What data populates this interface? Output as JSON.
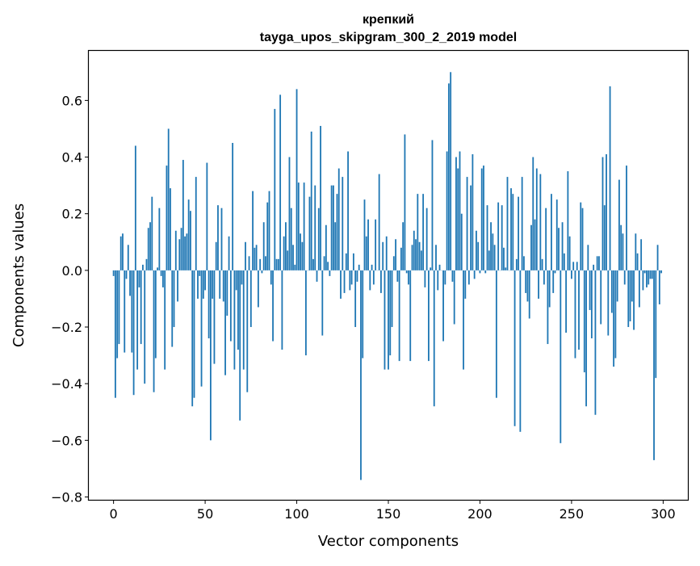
{
  "colors": {
    "bar": "#1f77b4",
    "axis": "#000000",
    "background": "#ffffff"
  },
  "chart_data": {
    "type": "bar",
    "title": "крепкий",
    "subtitle": "tayga_upos_skipgram_300_2_2019 model",
    "xlabel": "Vector components",
    "ylabel": "Components values",
    "xlim": [
      -13.5,
      313.5
    ],
    "ylim": [
      -0.81,
      0.775
    ],
    "xticks": [
      0,
      50,
      100,
      150,
      200,
      250,
      300
    ],
    "xtick_labels": [
      "0",
      "50",
      "100",
      "150",
      "200",
      "250",
      "300"
    ],
    "yticks": [
      -0.8,
      -0.6,
      -0.4,
      -0.2,
      0.0,
      0.2,
      0.4,
      0.6
    ],
    "ytick_labels": [
      "−0.8",
      "−0.6",
      "−0.4",
      "−0.2",
      "0.0",
      "0.2",
      "0.4",
      "0.6"
    ],
    "grid": false,
    "x": "0..299 (component index)",
    "values": [
      -0.02,
      -0.45,
      -0.31,
      -0.26,
      0.12,
      0.13,
      -0.29,
      -0.03,
      0.09,
      -0.09,
      -0.29,
      -0.44,
      0.44,
      -0.35,
      -0.06,
      -0.26,
      0.02,
      -0.4,
      0.04,
      0.15,
      0.17,
      0.26,
      -0.43,
      -0.31,
      0.01,
      0.22,
      -0.02,
      -0.06,
      -0.35,
      0.37,
      0.5,
      0.29,
      -0.27,
      -0.2,
      0.14,
      -0.11,
      0.11,
      0.15,
      0.39,
      0.12,
      0.13,
      0.25,
      0.21,
      -0.48,
      -0.45,
      0.33,
      -0.1,
      -0.02,
      -0.41,
      -0.1,
      -0.07,
      0.38,
      -0.24,
      -0.6,
      -0.1,
      -0.33,
      0.1,
      0.23,
      -0.1,
      0.22,
      -0.11,
      -0.37,
      -0.16,
      0.12,
      -0.25,
      0.45,
      -0.35,
      -0.07,
      -0.28,
      -0.53,
      -0.05,
      -0.35,
      0.1,
      -0.43,
      0.05,
      -0.2,
      0.28,
      0.08,
      0.09,
      -0.13,
      0.04,
      -0.01,
      0.17,
      0.05,
      0.24,
      0.28,
      -0.05,
      -0.25,
      0.57,
      0.04,
      0.04,
      0.62,
      -0.28,
      0.12,
      0.17,
      0.07,
      0.4,
      0.22,
      0.09,
      0.02,
      0.64,
      0.31,
      0.13,
      0.1,
      0.31,
      -0.3,
      0.0,
      0.26,
      0.49,
      0.04,
      0.3,
      -0.04,
      0.22,
      0.51,
      -0.23,
      0.05,
      0.16,
      0.03,
      -0.02,
      0.3,
      0.3,
      0.17,
      0.27,
      0.36,
      -0.1,
      0.33,
      -0.08,
      0.06,
      0.42,
      -0.07,
      -0.05,
      0.06,
      -0.2,
      -0.04,
      0.02,
      -0.74,
      -0.31,
      0.25,
      0.12,
      0.18,
      -0.07,
      0.02,
      -0.05,
      0.18,
      0.0,
      0.34,
      -0.08,
      0.1,
      -0.35,
      0.12,
      -0.35,
      -0.3,
      -0.2,
      0.05,
      0.11,
      -0.04,
      -0.32,
      0.08,
      0.17,
      0.48,
      -0.01,
      -0.05,
      -0.32,
      0.09,
      0.14,
      0.11,
      0.27,
      0.1,
      0.07,
      0.27,
      -0.06,
      0.22,
      -0.32,
      0.01,
      0.46,
      -0.48,
      0.09,
      -0.07,
      0.02,
      0.0,
      -0.25,
      -0.05,
      0.42,
      0.66,
      0.7,
      -0.04,
      -0.19,
      0.4,
      0.36,
      0.42,
      0.2,
      -0.35,
      -0.1,
      0.33,
      -0.05,
      0.3,
      0.41,
      -0.03,
      0.14,
      0.1,
      -0.01,
      0.36,
      0.37,
      -0.01,
      0.23,
      0.07,
      0.17,
      0.13,
      0.09,
      -0.45,
      0.24,
      0.0,
      0.23,
      0.08,
      0.01,
      0.33,
      0.0,
      0.29,
      0.27,
      -0.55,
      0.04,
      0.26,
      -0.57,
      0.33,
      0.05,
      -0.08,
      -0.11,
      -0.17,
      0.16,
      0.4,
      0.18,
      0.36,
      -0.1,
      0.34,
      0.04,
      -0.05,
      0.22,
      -0.26,
      -0.13,
      0.27,
      -0.08,
      -0.01,
      0.25,
      0.15,
      -0.61,
      0.17,
      0.06,
      -0.22,
      0.35,
      0.12,
      -0.03,
      0.03,
      -0.31,
      0.03,
      -0.28,
      0.24,
      0.22,
      -0.36,
      -0.48,
      0.09,
      -0.14,
      -0.24,
      0.02,
      -0.51,
      0.05,
      0.05,
      -0.19,
      0.4,
      0.23,
      0.41,
      -0.23,
      0.65,
      -0.15,
      -0.34,
      -0.31,
      -0.11,
      0.32,
      0.16,
      0.13,
      -0.05,
      0.37,
      -0.2,
      -0.18,
      -0.11,
      -0.21,
      0.13,
      0.06,
      -0.13,
      0.11,
      -0.07,
      -0.01,
      -0.06,
      -0.05,
      -0.03,
      -0.03,
      -0.67,
      -0.38,
      0.09,
      -0.12,
      -0.01
    ]
  }
}
